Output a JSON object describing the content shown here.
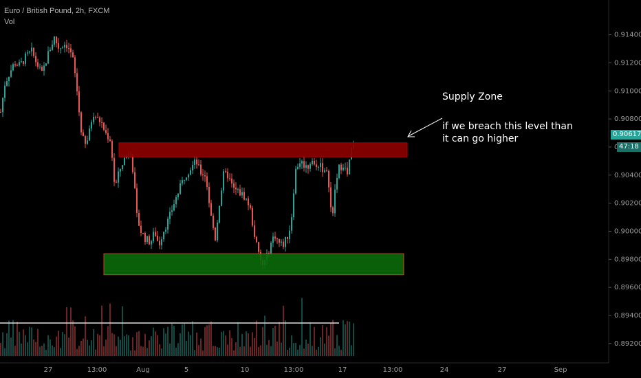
{
  "header": {
    "symbol": "Euro / British Pound, 2h, FXCM",
    "indicator": "Vol"
  },
  "price_tag": {
    "value": "0.90617",
    "countdown": "47:18",
    "color": "#26a69a"
  },
  "annotations": {
    "supply_title": "Supply Zone",
    "supply_line1": "if we breach this level than",
    "supply_line2": "it can go higher"
  },
  "colors": {
    "up": "#26a69a",
    "down": "#ef5350",
    "supply": "#8b0000",
    "demand": "#0a6a0a",
    "text": "#ffffff"
  },
  "chart_data": {
    "type": "candlestick",
    "symbol": "EURGBP",
    "timeframe": "2h",
    "y_axis_ticks": [
      0.914,
      0.912,
      0.91,
      0.908,
      0.906,
      0.904,
      0.902,
      0.9,
      0.898,
      0.896,
      0.894,
      0.892
    ],
    "y_axis_labels": [
      "0.91400",
      "0.91200",
      "0.91000",
      "0.90800",
      "0.90600",
      "0.90400",
      "0.90200",
      "0.90000",
      "0.89800",
      "0.89600",
      "0.89400",
      "0.89200"
    ],
    "x_axis_labels": [
      "27",
      "13:00",
      "Aug",
      "5",
      "10",
      "13:00",
      "17",
      "13:00",
      "24",
      "27",
      "Sep"
    ],
    "ylim": [
      0.8915,
      0.9155
    ],
    "last_price": 0.90617,
    "path_points": [
      [
        0,
        0.9085
      ],
      [
        6,
        0.9105
      ],
      [
        12,
        0.9112
      ],
      [
        20,
        0.912
      ],
      [
        28,
        0.9118
      ],
      [
        36,
        0.9124
      ],
      [
        45,
        0.9128
      ],
      [
        52,
        0.912
      ],
      [
        60,
        0.9112
      ],
      [
        70,
        0.9128
      ],
      [
        78,
        0.9138
      ],
      [
        85,
        0.913
      ],
      [
        92,
        0.9134
      ],
      [
        98,
        0.9132
      ],
      [
        105,
        0.9122
      ],
      [
        110,
        0.9105
      ],
      [
        116,
        0.9075
      ],
      [
        122,
        0.906
      ],
      [
        128,
        0.9068
      ],
      [
        134,
        0.9085
      ],
      [
        140,
        0.908
      ],
      [
        146,
        0.9078
      ],
      [
        152,
        0.907
      ],
      [
        160,
        0.9065
      ],
      [
        166,
        0.903
      ],
      [
        172,
        0.9042
      ],
      [
        178,
        0.905
      ],
      [
        184,
        0.9055
      ],
      [
        189,
        0.9058
      ],
      [
        193,
        0.904
      ],
      [
        198,
        0.901
      ],
      [
        204,
        0.9
      ],
      [
        210,
        0.8995
      ],
      [
        218,
        0.8992
      ],
      [
        224,
        0.9
      ],
      [
        230,
        0.899
      ],
      [
        236,
        0.9
      ],
      [
        244,
        0.9008
      ],
      [
        252,
        0.902
      ],
      [
        260,
        0.903
      ],
      [
        268,
        0.904
      ],
      [
        276,
        0.9045
      ],
      [
        284,
        0.905
      ],
      [
        290,
        0.9042
      ],
      [
        298,
        0.904
      ],
      [
        306,
        0.901
      ],
      [
        312,
        0.8995
      ],
      [
        318,
        0.902
      ],
      [
        324,
        0.904
      ],
      [
        330,
        0.904
      ],
      [
        338,
        0.903
      ],
      [
        346,
        0.9028
      ],
      [
        354,
        0.9025
      ],
      [
        362,
        0.9018
      ],
      [
        368,
        0.9
      ],
      [
        374,
        0.8985
      ],
      [
        380,
        0.8975
      ],
      [
        386,
        0.898
      ],
      [
        392,
        0.899
      ],
      [
        398,
        0.8998
      ],
      [
        404,
        0.8992
      ],
      [
        410,
        0.899
      ],
      [
        416,
        0.8995
      ],
      [
        422,
        0.9005
      ],
      [
        428,
        0.9042
      ],
      [
        434,
        0.905
      ],
      [
        440,
        0.9048
      ],
      [
        446,
        0.9045
      ],
      [
        452,
        0.9052
      ],
      [
        458,
        0.9044
      ],
      [
        464,
        0.905
      ],
      [
        470,
        0.9042
      ],
      [
        476,
        0.904
      ],
      [
        482,
        0.9005
      ],
      [
        486,
        0.903
      ],
      [
        492,
        0.9045
      ],
      [
        498,
        0.9048
      ],
      [
        504,
        0.904
      ],
      [
        510,
        0.9058
      ],
      [
        514,
        0.9061
      ]
    ],
    "supply_zone": {
      "price_low": 0.9053,
      "price_high": 0.9063
    },
    "demand_zone": {
      "price_low": 0.8969,
      "price_high": 0.8984
    },
    "volume_average": "flat line",
    "grid": false
  }
}
